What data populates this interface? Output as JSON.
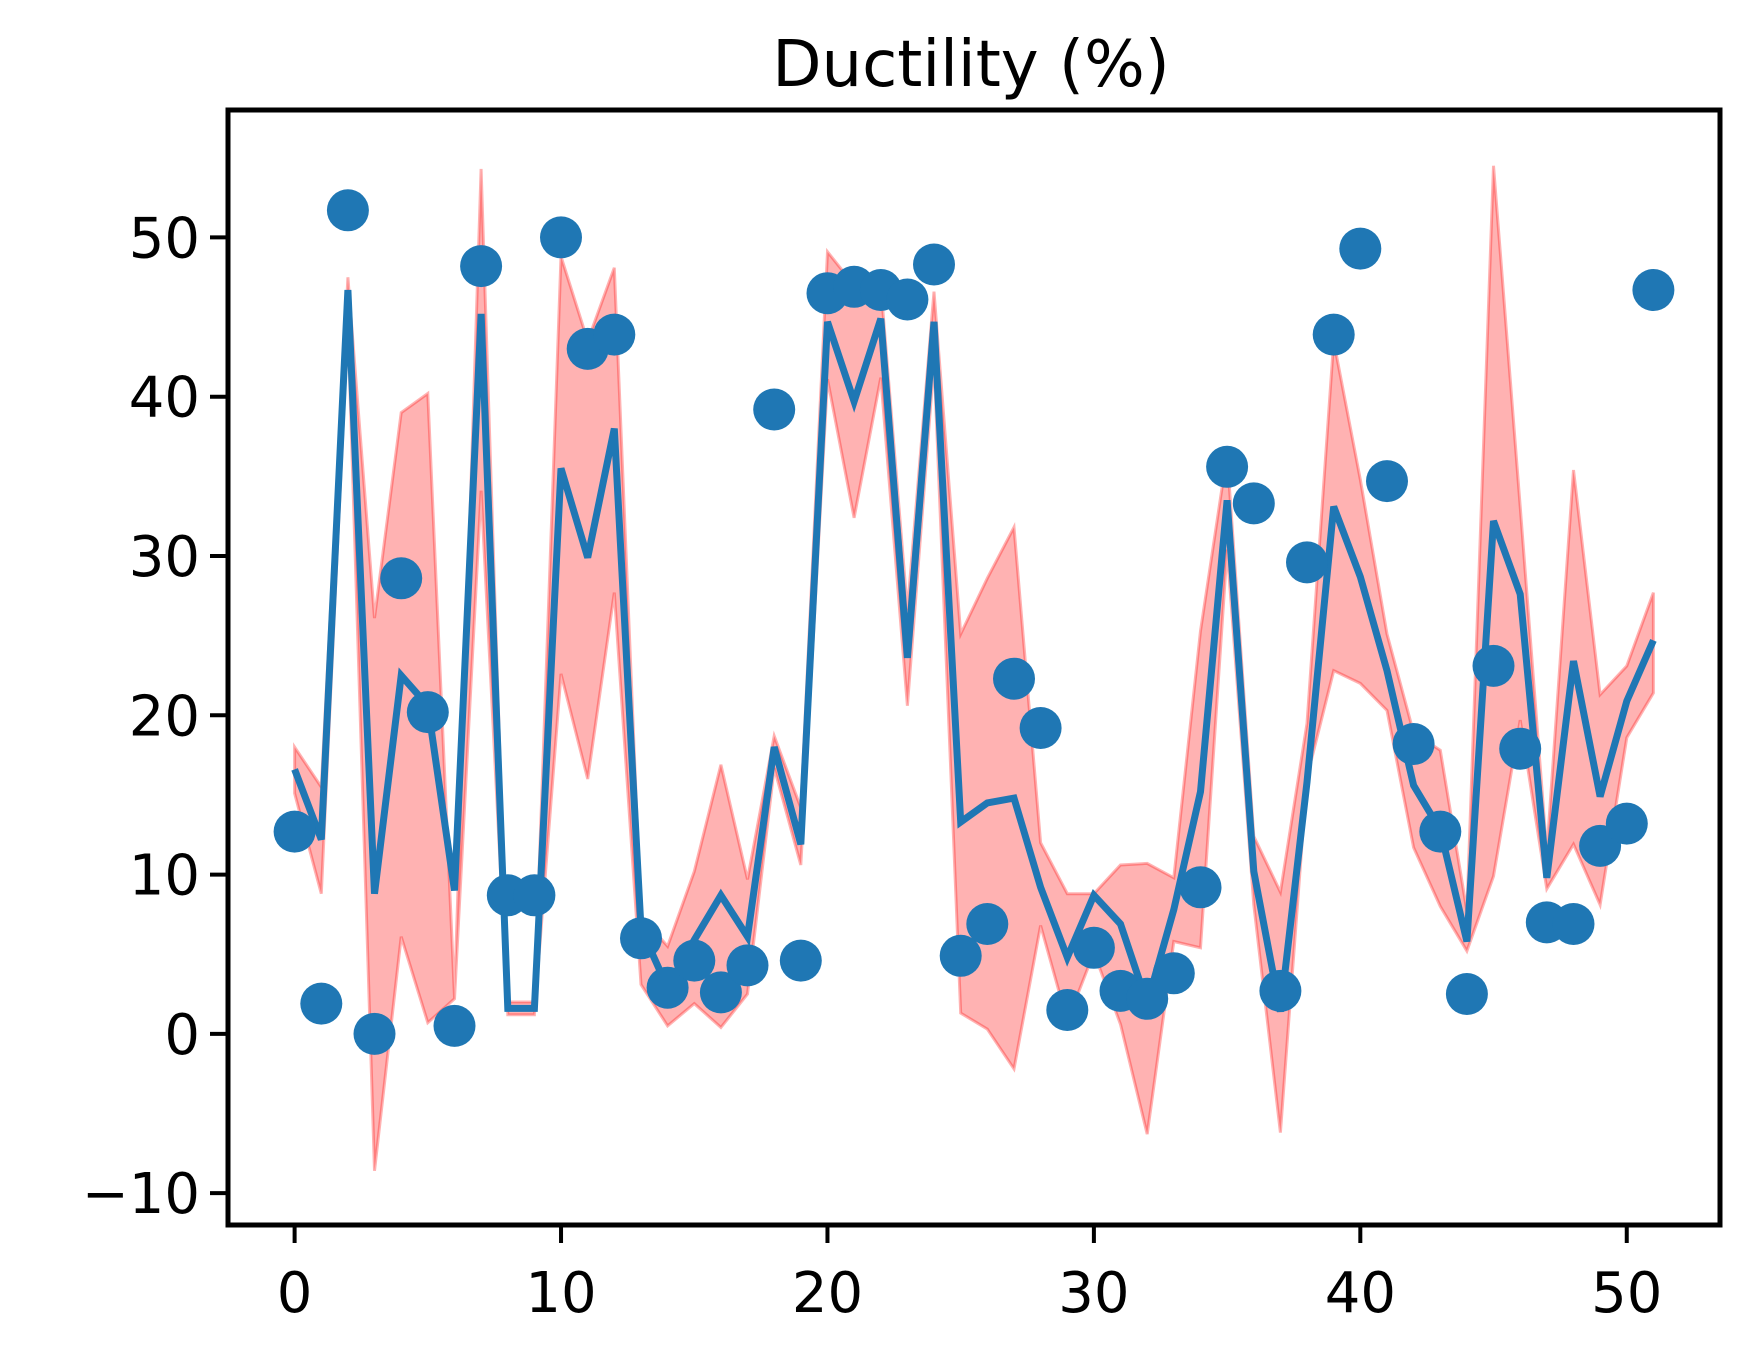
{
  "chart_data": {
    "type": "line",
    "title": "Ductility (%)",
    "xlabel": "",
    "ylabel": "",
    "xlim": [
      -2.5,
      53.5
    ],
    "ylim": [
      -12,
      58
    ],
    "xticks": [
      0,
      10,
      20,
      30,
      40,
      50
    ],
    "yticks": [
      -10,
      0,
      10,
      20,
      30,
      40,
      50
    ],
    "x_tick_labels": [
      "0",
      "10",
      "20",
      "30",
      "40",
      "50"
    ],
    "y_tick_labels": [
      "−10",
      "0",
      "10",
      "20",
      "30",
      "40",
      "50"
    ],
    "grid": false,
    "legend": "none",
    "colors": {
      "points": "#1f77b4",
      "line": "#1f77b4",
      "band_fill": "#ff0000",
      "band_edge": "#ff0000"
    },
    "x": [
      0,
      1,
      2,
      3,
      4,
      5,
      6,
      7,
      8,
      9,
      10,
      11,
      12,
      13,
      14,
      15,
      16,
      17,
      18,
      19,
      20,
      21,
      22,
      23,
      24,
      25,
      26,
      27,
      28,
      29,
      30,
      31,
      32,
      33,
      34,
      35,
      36,
      37,
      38,
      39,
      40,
      41,
      42,
      43,
      44,
      45,
      46,
      47,
      48,
      49,
      50,
      51
    ],
    "observed": [
      12.7,
      1.9,
      51.7,
      0.0,
      28.6,
      20.2,
      0.5,
      48.2,
      8.7,
      8.7,
      50.0,
      43.0,
      43.9,
      6.0,
      2.9,
      4.6,
      2.6,
      4.3,
      39.2,
      4.6,
      46.5,
      46.9,
      46.7,
      46.1,
      48.3,
      4.9,
      6.9,
      22.3,
      19.2,
      1.5,
      5.4,
      2.7,
      2.2,
      3.8,
      9.2,
      35.6,
      33.3,
      2.7,
      29.6,
      43.9,
      49.3,
      34.7,
      18.2,
      12.7,
      2.5,
      23.1,
      17.9,
      7.0,
      6.9,
      11.8,
      13.2,
      46.7
    ],
    "predicted": [
      16.6,
      12.2,
      46.7,
      8.8,
      22.5,
      20.6,
      9.0,
      45.2,
      1.6,
      1.6,
      35.5,
      29.9,
      38.0,
      6.6,
      2.9,
      5.9,
      8.7,
      6.1,
      18.0,
      11.9,
      44.7,
      39.7,
      44.9,
      23.6,
      44.7,
      13.3,
      14.5,
      14.8,
      9.2,
      4.8,
      8.7,
      6.9,
      1.9,
      7.8,
      15.2,
      33.5,
      10.2,
      1.4,
      15.8,
      33.1,
      28.7,
      22.8,
      15.6,
      12.8,
      5.8,
      32.2,
      27.6,
      9.8,
      23.4,
      14.9,
      20.9,
      24.7
    ],
    "band_upper": [
      18.0,
      15.5,
      47.5,
      26.1,
      39.0,
      40.2,
      2.3,
      54.3,
      2.0,
      2.0,
      48.8,
      43.5,
      48.1,
      7.4,
      5.5,
      10.2,
      16.9,
      9.7,
      18.7,
      14.2,
      49.1,
      47.0,
      47.0,
      26.6,
      46.6,
      25.1,
      28.6,
      31.8,
      12.0,
      8.8,
      8.8,
      10.6,
      10.7,
      9.8,
      25.3,
      36.4,
      12.4,
      8.9,
      19.5,
      43.5,
      34.8,
      25.1,
      18.9,
      17.8,
      7.7,
      54.5,
      33.1,
      11.4,
      35.4,
      21.3,
      23.1,
      27.7
    ],
    "band_lower": [
      15.1,
      8.8,
      44.6,
      -8.6,
      6.1,
      0.7,
      2.2,
      34.1,
      1.2,
      1.2,
      22.6,
      16.0,
      27.7,
      3.1,
      0.5,
      1.9,
      0.4,
      2.5,
      16.7,
      10.6,
      41.1,
      32.4,
      41.2,
      20.6,
      42.2,
      1.3,
      0.3,
      -2.2,
      6.8,
      0.8,
      5.1,
      0.6,
      -6.3,
      5.8,
      5.4,
      30.4,
      8.1,
      -6.2,
      16.1,
      22.8,
      22.0,
      20.3,
      11.7,
      8.0,
      5.2,
      9.9,
      19.7,
      9.1,
      11.9,
      8.1,
      18.6,
      21.4
    ]
  }
}
